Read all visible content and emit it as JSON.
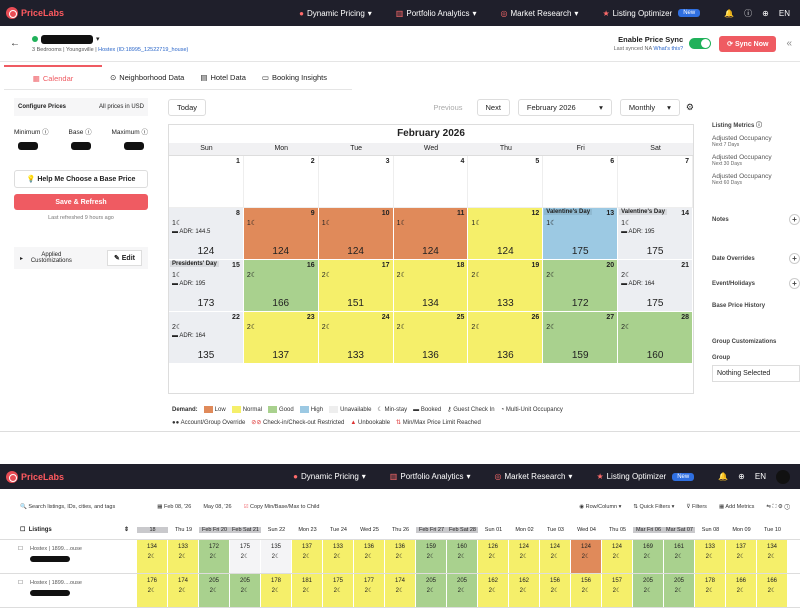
{
  "app": {
    "brand": "PriceLabs"
  },
  "nav": {
    "items": [
      {
        "label": "Dynamic Pricing"
      },
      {
        "label": "Portfolio Analytics"
      },
      {
        "label": "Market Research"
      },
      {
        "label": "Listing Optimizer"
      }
    ],
    "new_badge": "New",
    "lang": "EN"
  },
  "listing": {
    "meta": "3 Bedrooms | Youngsville |",
    "link": "Hostex (ID:18995_12522719_house)"
  },
  "sync": {
    "label": "Enable Price Sync",
    "last": "Last synced NA",
    "whats": "What's this?",
    "button": "Sync Now"
  },
  "tabs": [
    "Calendar",
    "Neighborhood Data",
    "Hotel Data",
    "Booking Insights"
  ],
  "left": {
    "configure": "Configure Prices",
    "all_prices": "All prices in USD",
    "minimum": "Minimum",
    "base": "Base",
    "maximum": "Maximum",
    "help": "Help Me Choose a Base Price",
    "save": "Save & Refresh",
    "refreshed": "Last refreshed 9 hours ago",
    "applied": "Applied Customizations",
    "edit": "Edit"
  },
  "controls": {
    "today": "Today",
    "previous": "Previous",
    "next": "Next",
    "month": "February 2026",
    "view": "Monthly"
  },
  "calendar": {
    "title": "February 2026",
    "dows": [
      "Sun",
      "Mon",
      "Tue",
      "Wed",
      "Thu",
      "Fri",
      "Sat"
    ],
    "cells": [
      {
        "d": "",
        "c": "blank"
      },
      {
        "d": "",
        "c": "blank"
      },
      {
        "d": "",
        "c": "blank"
      },
      {
        "d": "",
        "c": "blank"
      },
      {
        "d": "",
        "c": "blank"
      },
      {
        "d": "",
        "c": "blank"
      },
      {
        "d": "",
        "c": "blank"
      },
      {
        "d": "1",
        "c": "blank"
      },
      {
        "d": "2",
        "c": "blank"
      },
      {
        "d": "3",
        "c": "blank"
      },
      {
        "d": "4",
        "c": "blank"
      },
      {
        "d": "5",
        "c": "blank"
      },
      {
        "d": "6",
        "c": "blank"
      },
      {
        "d": "7",
        "c": "blank"
      },
      {
        "d": "8",
        "c": "grey",
        "ms": "1☾",
        "adr": "ADR: 144.5",
        "p": "124"
      },
      {
        "d": "9",
        "c": "orange",
        "ms": "1☾",
        "p": "124"
      },
      {
        "d": "10",
        "c": "orange",
        "ms": "1☾",
        "p": "124"
      },
      {
        "d": "11",
        "c": "orange",
        "ms": "1☾",
        "p": "124"
      },
      {
        "d": "12",
        "c": "yellow",
        "ms": "1☾",
        "p": "124"
      },
      {
        "d": "13",
        "c": "blue",
        "ev": "Valentine's Day",
        "ms": "1☾",
        "p": "175"
      },
      {
        "d": "14",
        "c": "grey",
        "ev": "Valentine's Day",
        "ms": "1☾",
        "adr": "ADR: 195",
        "p": "175"
      },
      {
        "d": "15",
        "c": "grey",
        "ev": "Presidents' Day",
        "ms": "1☾",
        "adr": "ADR: 195",
        "p": "173"
      },
      {
        "d": "16",
        "c": "green",
        "ms": "2☾",
        "p": "166"
      },
      {
        "d": "17",
        "c": "yellow",
        "ms": "2☾",
        "p": "151"
      },
      {
        "d": "18",
        "c": "yellow",
        "ms": "2☾",
        "p": "134"
      },
      {
        "d": "19",
        "c": "yellow",
        "ms": "2☾",
        "p": "133"
      },
      {
        "d": "20",
        "c": "green",
        "ms": "2☾",
        "p": "172"
      },
      {
        "d": "21",
        "c": "grey",
        "ms": "2☾",
        "adr": "ADR: 164",
        "p": "175"
      },
      {
        "d": "22",
        "c": "grey",
        "ms": "2☾",
        "adr": "ADR: 164",
        "p": "135"
      },
      {
        "d": "23",
        "c": "yellow",
        "ms": "2☾",
        "p": "137"
      },
      {
        "d": "24",
        "c": "yellow",
        "ms": "2☾",
        "p": "133"
      },
      {
        "d": "25",
        "c": "yellow",
        "ms": "2☾",
        "p": "136"
      },
      {
        "d": "26",
        "c": "yellow",
        "ms": "2☾",
        "p": "136"
      },
      {
        "d": "27",
        "c": "green",
        "ms": "2☾",
        "p": "159"
      },
      {
        "d": "28",
        "c": "green",
        "ms": "2☾",
        "p": "160"
      }
    ]
  },
  "legend": {
    "demand": "Demand:",
    "low": "Low",
    "normal": "Normal",
    "good": "Good",
    "high": "High",
    "unavailable": "Unavailable",
    "minstay": "Min-stay",
    "booked": "Booked",
    "guest": "Guest Check In",
    "multi": "Multi-Unit Occupancy",
    "acct": "Account/Group Override",
    "cico": "Check-in/Check-out Restricted",
    "unbook": "Unbookable",
    "minmax": "Min/Max Price Limit Reached"
  },
  "right": {
    "metrics": "Listing Metrics",
    "occ": [
      {
        "t": "Adjusted Occupancy",
        "s": "Next 7 Days"
      },
      {
        "t": "Adjusted Occupancy",
        "s": "Next 30 Days"
      },
      {
        "t": "Adjusted Occupancy",
        "s": "Next 60 Days"
      }
    ],
    "notes": "Notes",
    "overrides": "Date Overrides",
    "events": "Event/Holidays",
    "history": "Base Price History",
    "groupcust": "Group Customizations",
    "group": "Group",
    "nothing": "Nothing Selected"
  },
  "bottom": {
    "search": "Search listings, IDs, cities, and tags",
    "from": "Feb 08, '26",
    "to": "May 08, '26",
    "copy": "Copy Min/Base/Max to Child",
    "rowcol": "Row/Column",
    "quick": "Quick Filters",
    "filters": "Filters",
    "addm": "Add Metrics",
    "listings": "Listings",
    "cols": [
      {
        "l": "18",
        "w": 1
      },
      {
        "l": "Thu 19"
      },
      {
        "l": "Feb Fri 20",
        "w": 1
      },
      {
        "l": "Feb Sat 21",
        "w": 1
      },
      {
        "l": "Sun 22"
      },
      {
        "l": "Mon 23"
      },
      {
        "l": "Tue 24"
      },
      {
        "l": "Wed 25"
      },
      {
        "l": "Thu 26"
      },
      {
        "l": "Feb Fri 27",
        "w": 1
      },
      {
        "l": "Feb Sat 28",
        "w": 1
      },
      {
        "l": "Sun 01"
      },
      {
        "l": "Mon 02"
      },
      {
        "l": "Tue 03"
      },
      {
        "l": "Wed 04"
      },
      {
        "l": "Thu 05"
      },
      {
        "l": "Mar Fri 06",
        "w": 1
      },
      {
        "l": "Mar Sat 07",
        "w": 1
      },
      {
        "l": "Sun 08"
      },
      {
        "l": "Mon 09"
      },
      {
        "l": "Tue 10"
      }
    ],
    "rows": [
      {
        "name": "Hostex | 1899....ouse",
        "vals": [
          "134",
          "133",
          "172",
          "175",
          "135",
          "137",
          "133",
          "136",
          "136",
          "159",
          "160",
          "126",
          "124",
          "124",
          "124",
          "124",
          "169",
          "161",
          "133",
          "137",
          "134"
        ],
        "cols": [
          "y",
          "y",
          "g",
          "w",
          "w",
          "y",
          "y",
          "y",
          "y",
          "g",
          "g",
          "y",
          "y",
          "y",
          "o",
          "y",
          "g",
          "g",
          "y",
          "y",
          "y"
        ]
      },
      {
        "name": "Hostex | 1899....ouse",
        "vals": [
          "176",
          "174",
          "205",
          "205",
          "178",
          "181",
          "175",
          "177",
          "174",
          "205",
          "205",
          "162",
          "162",
          "156",
          "156",
          "157",
          "205",
          "205",
          "178",
          "166",
          "166"
        ],
        "cols": [
          "y",
          "y",
          "g",
          "g",
          "y",
          "y",
          "y",
          "y",
          "y",
          "g",
          "g",
          "y",
          "y",
          "y",
          "y",
          "y",
          "g",
          "g",
          "y",
          "y",
          "y"
        ]
      }
    ]
  }
}
